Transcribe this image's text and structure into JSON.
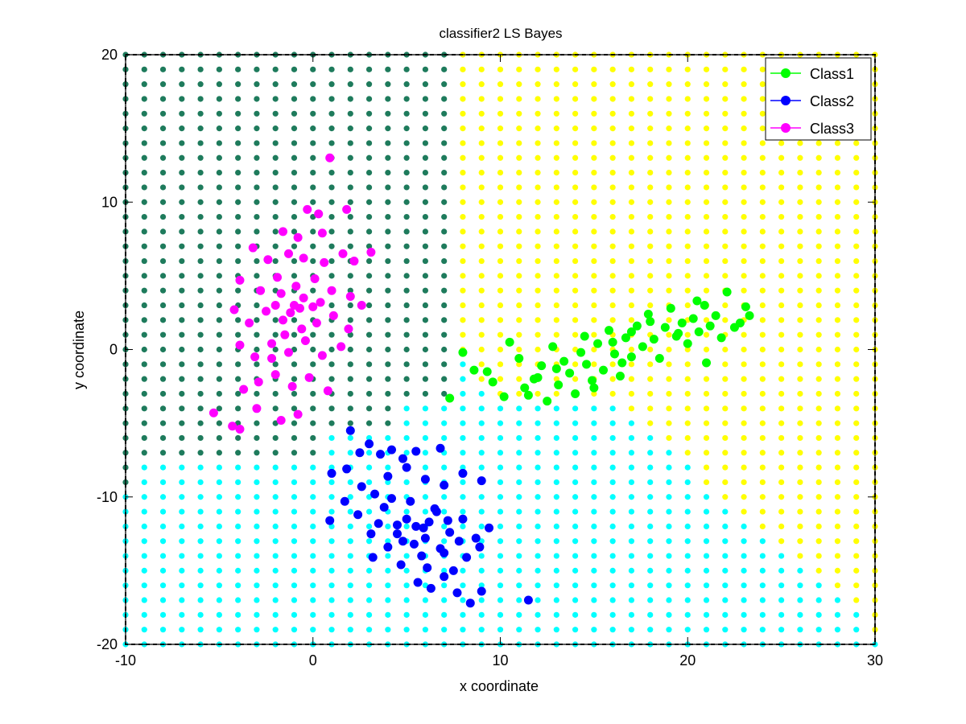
{
  "chart_data": {
    "type": "scatter",
    "title": "classifier2 LS Bayes",
    "xlabel": "x coordinate",
    "ylabel": "y coordinate",
    "xlim": [
      -10,
      30
    ],
    "ylim": [
      -20,
      20
    ],
    "xticks": [
      -10,
      0,
      10,
      20,
      30
    ],
    "yticks": [
      -20,
      -10,
      0,
      10,
      20
    ],
    "xtick_labels": [
      "-10",
      "0",
      "10",
      "20",
      "30"
    ],
    "ytick_labels": [
      "-20",
      "-10",
      "0",
      "10",
      "20"
    ],
    "grid": false,
    "legend_position": "top-right",
    "decision_regions": {
      "grid_step": 1,
      "region_colors": {
        "Class1": "#ffff00",
        "Class2": "#00ffff",
        "Class3": "#1e7b5c"
      }
    },
    "series": [
      {
        "name": "Class1",
        "color": "#00ff00",
        "points": [
          [
            8,
            -0.2
          ],
          [
            7.3,
            -3.3
          ],
          [
            8.6,
            -1.4
          ],
          [
            9.3,
            -1.5
          ],
          [
            9.6,
            -2.2
          ],
          [
            10.2,
            -3.2
          ],
          [
            10.5,
            0.5
          ],
          [
            11.3,
            -2.6
          ],
          [
            11.5,
            -3.1
          ],
          [
            11.8,
            -2.0
          ],
          [
            12.2,
            -1.1
          ],
          [
            12.5,
            -3.5
          ],
          [
            12.8,
            0.2
          ],
          [
            13.1,
            -2.4
          ],
          [
            13.4,
            -0.8
          ],
          [
            13.7,
            -1.6
          ],
          [
            14.0,
            -3.0
          ],
          [
            14.3,
            -0.2
          ],
          [
            14.6,
            -1.0
          ],
          [
            14.9,
            -2.1
          ],
          [
            15.2,
            0.4
          ],
          [
            15.5,
            -1.4
          ],
          [
            15.8,
            1.3
          ],
          [
            16.1,
            -0.3
          ],
          [
            16.4,
            -1.8
          ],
          [
            16.7,
            0.8
          ],
          [
            17.0,
            -0.5
          ],
          [
            17.3,
            1.6
          ],
          [
            17.6,
            0.2
          ],
          [
            17.9,
            2.4
          ],
          [
            18.2,
            0.7
          ],
          [
            18.5,
            -0.6
          ],
          [
            18.8,
            1.5
          ],
          [
            19.1,
            2.8
          ],
          [
            19.4,
            0.9
          ],
          [
            19.7,
            1.8
          ],
          [
            20.0,
            0.4
          ],
          [
            20.3,
            2.1
          ],
          [
            20.6,
            1.2
          ],
          [
            20.9,
            3.0
          ],
          [
            21.2,
            1.6
          ],
          [
            21.5,
            2.3
          ],
          [
            21.8,
            0.8
          ],
          [
            22.1,
            3.9
          ],
          [
            22.5,
            1.5
          ],
          [
            22.8,
            1.8
          ],
          [
            23.1,
            2.9
          ],
          [
            23.3,
            2.3
          ],
          [
            21.0,
            -0.9
          ],
          [
            13.0,
            -1.3
          ],
          [
            14.5,
            0.9
          ],
          [
            16.0,
            0.5
          ],
          [
            17.0,
            1.2
          ],
          [
            18.0,
            1.9
          ],
          [
            15.0,
            -2.6
          ],
          [
            16.5,
            -0.9
          ],
          [
            19.5,
            1.1
          ],
          [
            12.0,
            -1.9
          ],
          [
            11.0,
            -0.6
          ],
          [
            20.5,
            3.3
          ]
        ]
      },
      {
        "name": "Class2",
        "color": "#0000ff",
        "points": [
          [
            2.0,
            -5.5
          ],
          [
            2.5,
            -7.0
          ],
          [
            3.0,
            -6.4
          ],
          [
            3.6,
            -7.1
          ],
          [
            4.2,
            -6.8
          ],
          [
            4.8,
            -7.4
          ],
          [
            5.5,
            -6.9
          ],
          [
            6.8,
            -6.7
          ],
          [
            1.0,
            -8.4
          ],
          [
            1.8,
            -8.1
          ],
          [
            2.6,
            -9.3
          ],
          [
            3.3,
            -9.8
          ],
          [
            4.0,
            -8.6
          ],
          [
            5.0,
            -8.0
          ],
          [
            6.0,
            -8.8
          ],
          [
            7.0,
            -9.2
          ],
          [
            8.0,
            -8.4
          ],
          [
            9.0,
            -8.9
          ],
          [
            0.9,
            -11.6
          ],
          [
            1.7,
            -10.3
          ],
          [
            2.4,
            -11.2
          ],
          [
            3.1,
            -12.5
          ],
          [
            3.8,
            -10.7
          ],
          [
            4.5,
            -11.9
          ],
          [
            5.2,
            -10.3
          ],
          [
            5.9,
            -12.1
          ],
          [
            6.6,
            -11.0
          ],
          [
            7.3,
            -12.4
          ],
          [
            8.0,
            -11.5
          ],
          [
            8.7,
            -12.8
          ],
          [
            9.4,
            -12.1
          ],
          [
            3.2,
            -14.1
          ],
          [
            4.0,
            -13.4
          ],
          [
            4.7,
            -14.6
          ],
          [
            5.4,
            -13.2
          ],
          [
            6.1,
            -14.8
          ],
          [
            6.8,
            -13.5
          ],
          [
            7.5,
            -15.0
          ],
          [
            8.2,
            -14.1
          ],
          [
            8.9,
            -13.4
          ],
          [
            5.6,
            -15.8
          ],
          [
            6.3,
            -16.2
          ],
          [
            7.0,
            -15.4
          ],
          [
            7.7,
            -16.5
          ],
          [
            8.4,
            -17.2
          ],
          [
            9.0,
            -16.4
          ],
          [
            11.5,
            -17.0
          ],
          [
            4.5,
            -12.5
          ],
          [
            5.0,
            -11.5
          ],
          [
            6.0,
            -12.8
          ],
          [
            6.5,
            -10.8
          ],
          [
            7.0,
            -13.8
          ],
          [
            5.5,
            -12.0
          ],
          [
            4.2,
            -10.1
          ],
          [
            6.2,
            -11.7
          ],
          [
            7.8,
            -13.0
          ],
          [
            3.5,
            -11.8
          ],
          [
            5.8,
            -14.0
          ],
          [
            7.2,
            -11.6
          ],
          [
            4.8,
            -13.0
          ]
        ]
      },
      {
        "name": "Class3",
        "color": "#ff00ff",
        "points": [
          [
            0.9,
            13.0
          ],
          [
            -0.3,
            9.5
          ],
          [
            0.3,
            9.2
          ],
          [
            1.8,
            9.5
          ],
          [
            -1.6,
            8.0
          ],
          [
            -0.8,
            7.6
          ],
          [
            0.5,
            7.9
          ],
          [
            1.6,
            6.5
          ],
          [
            -3.2,
            6.9
          ],
          [
            -2.4,
            6.1
          ],
          [
            -1.3,
            6.5
          ],
          [
            -0.5,
            6.2
          ],
          [
            0.6,
            5.9
          ],
          [
            2.2,
            6.0
          ],
          [
            3.1,
            6.6
          ],
          [
            -3.9,
            4.7
          ],
          [
            -2.8,
            4.0
          ],
          [
            -1.9,
            4.9
          ],
          [
            -0.9,
            4.3
          ],
          [
            0.1,
            4.8
          ],
          [
            1.0,
            4.0
          ],
          [
            2.0,
            3.6
          ],
          [
            2.6,
            3.0
          ],
          [
            -4.2,
            2.7
          ],
          [
            -3.4,
            1.8
          ],
          [
            -2.5,
            2.6
          ],
          [
            -1.6,
            2.0
          ],
          [
            -0.7,
            2.8
          ],
          [
            0.2,
            1.8
          ],
          [
            1.1,
            2.3
          ],
          [
            1.9,
            1.4
          ],
          [
            -3.9,
            0.3
          ],
          [
            -3.1,
            -0.5
          ],
          [
            -2.2,
            0.4
          ],
          [
            -1.3,
            -0.2
          ],
          [
            -0.4,
            0.6
          ],
          [
            0.5,
            -0.4
          ],
          [
            1.5,
            0.2
          ],
          [
            -3.7,
            -2.7
          ],
          [
            -2.9,
            -2.2
          ],
          [
            -2.0,
            -1.7
          ],
          [
            -1.1,
            -2.5
          ],
          [
            -0.2,
            -1.9
          ],
          [
            0.8,
            -2.8
          ],
          [
            -3.0,
            -4.0
          ],
          [
            -1.7,
            -4.8
          ],
          [
            -0.8,
            -4.4
          ],
          [
            -5.3,
            -4.3
          ],
          [
            -4.3,
            -5.2
          ],
          [
            -3.9,
            -5.4
          ],
          [
            -1.0,
            3.0
          ],
          [
            -1.5,
            1.0
          ],
          [
            -0.5,
            3.5
          ],
          [
            -2.0,
            3.0
          ],
          [
            -1.2,
            2.5
          ],
          [
            0.0,
            2.9
          ],
          [
            -0.6,
            1.4
          ],
          [
            -2.2,
            -0.6
          ],
          [
            -1.7,
            3.8
          ],
          [
            0.4,
            3.2
          ]
        ]
      }
    ]
  }
}
